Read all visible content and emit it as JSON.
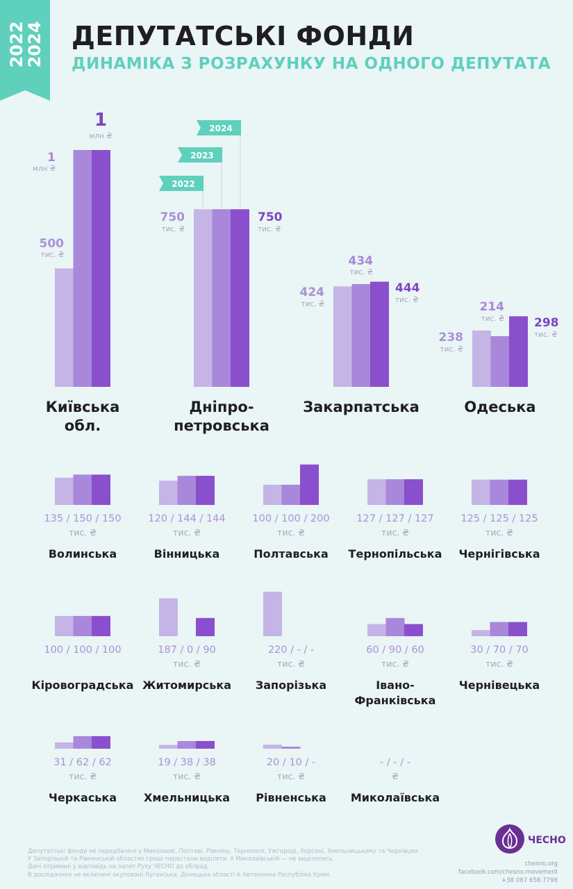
{
  "header": {
    "years": [
      "2022",
      "2024"
    ],
    "title": "ДЕПУТАТСЬКІ ФОНДИ",
    "subtitle": "ДИНАМІКА З РОЗРАХУНКУ НА ОДНОГО ДЕПУТАТА"
  },
  "colors": {
    "y2022": "#c5b4e6",
    "y2023": "#a987da",
    "y2024": "#8a4fcc",
    "value_2022": "#a992d3",
    "value_2024": "#7d46c2",
    "unit": "#a9a3bd",
    "mint": "#5fd0bc",
    "dark_text": "#1f1f1f",
    "background": "#eaf5f6"
  },
  "chart_data": [
    {
      "type": "bar",
      "categories": [
        "Київська обл.",
        "Дніпропетровська",
        "Закарпатська",
        "Одеська"
      ],
      "series": [
        {
          "name": "2022",
          "values": [
            500000,
            750000,
            424000,
            238000
          ]
        },
        {
          "name": "2023",
          "values": [
            1000000,
            750000,
            434000,
            214000
          ]
        },
        {
          "name": "2024",
          "values": [
            1000000,
            750000,
            444000,
            298000
          ]
        }
      ],
      "category_labels": [
        [
          "Київська",
          "обл."
        ],
        [
          "Дніпро-",
          "петровська"
        ],
        [
          "Закарпатська"
        ],
        [
          "Одеська"
        ]
      ],
      "value_labels": [
        {
          "2022": {
            "value": "500",
            "unit": "тис. ₴"
          },
          "2023": {
            "value": "1",
            "unit": "млн ₴"
          },
          "2024": {
            "value": "1",
            "unit": "млн ₴"
          }
        },
        {
          "2022": {
            "value": "750",
            "unit": "тис. ₴"
          },
          "2024": {
            "value": "750",
            "unit": "тис. ₴"
          }
        },
        {
          "2022": {
            "value": "424",
            "unit": "тис. ₴"
          },
          "2023": {
            "value": "434",
            "unit": "тис. ₴"
          },
          "2024": {
            "value": "444",
            "unit": "тис. ₴"
          }
        },
        {
          "2022": {
            "value": "238",
            "unit": "тис. ₴"
          },
          "2023": {
            "value": "214",
            "unit": "тис. ₴"
          },
          "2024": {
            "value": "298",
            "unit": "тис. ₴"
          }
        }
      ],
      "legend": [
        "2022",
        "2023",
        "2024"
      ]
    },
    {
      "type": "bar",
      "series_names": [
        "2022",
        "2023",
        "2024"
      ],
      "items": [
        {
          "name": [
            "Волинська"
          ],
          "values": [
            135,
            150,
            150
          ],
          "label": "135 / 150 / 150",
          "unit": "тис. ₴"
        },
        {
          "name": [
            "Вінницька"
          ],
          "values": [
            120,
            144,
            144
          ],
          "label": "120 / 144 / 144",
          "unit": "тис. ₴"
        },
        {
          "name": [
            "Полтавська"
          ],
          "values": [
            100,
            100,
            200
          ],
          "label": "100 / 100 / 200",
          "unit": "тис. ₴"
        },
        {
          "name": [
            "Тернопільська"
          ],
          "values": [
            127,
            127,
            127
          ],
          "label": "127 / 127 / 127",
          "unit": "тис. ₴"
        },
        {
          "name": [
            "Чернігівська"
          ],
          "values": [
            125,
            125,
            125
          ],
          "label": "125 / 125 / 125",
          "unit": "тис. ₴"
        },
        {
          "name": [
            "Кіровоградська"
          ],
          "values": [
            100,
            100,
            100
          ],
          "label": "100 / 100 / 100",
          "unit": ""
        },
        {
          "name": [
            "Житомирська"
          ],
          "values": [
            187,
            0,
            90
          ],
          "label": "187 / 0 / 90",
          "unit": "тис. ₴"
        },
        {
          "name": [
            "Запорізька"
          ],
          "values": [
            220,
            null,
            null
          ],
          "label": "220 / - / -",
          "unit": "тис. ₴"
        },
        {
          "name": [
            "Івано-",
            "Франківська"
          ],
          "values": [
            60,
            90,
            60
          ],
          "label": "60 / 90 / 60",
          "unit": "тис. ₴"
        },
        {
          "name": [
            "Чернівецька"
          ],
          "values": [
            30,
            70,
            70
          ],
          "label": "30 / 70 / 70",
          "unit": "тис. ₴"
        },
        {
          "name": [
            "Черкаська"
          ],
          "values": [
            31,
            62,
            62
          ],
          "label": "31 / 62 / 62",
          "unit": "тис. ₴"
        },
        {
          "name": [
            "Хмельницька"
          ],
          "values": [
            19,
            38,
            38
          ],
          "label": "19 / 38 / 38",
          "unit": "тис. ₴"
        },
        {
          "name": [
            "Рівненська"
          ],
          "values": [
            20,
            10,
            null
          ],
          "label": "20 / 10 / -",
          "unit": "тис. ₴"
        },
        {
          "name": [
            "Миколаївська"
          ],
          "values": [
            null,
            null,
            null
          ],
          "label": "- / - / -",
          "unit": "₴"
        }
      ]
    }
  ],
  "footnotes": [
    "Депутатські фонди не передбачені у Миколаєві, Полтаві, Рівному, Тернополі, Ужгороді, Херсоні, Хмельницькому та Чернівцях.",
    "У Запорізькій та Рівненській областях гроші перестали виділяти. У Миколаївській — не виділялись.",
    "Дані отримані у відповідь на запит Руху ЧЕСНО до облрад.",
    "В дослідженні не включені окуповані Луганська, Донецька області й Автономна Республіка Крим."
  ],
  "contacts": [
    "chesno.org",
    "facebook.com/chesno.movement",
    "+38 067 658 7798"
  ],
  "logo": {
    "text": "ЧЕСНО",
    "icon": "garlic-icon"
  }
}
